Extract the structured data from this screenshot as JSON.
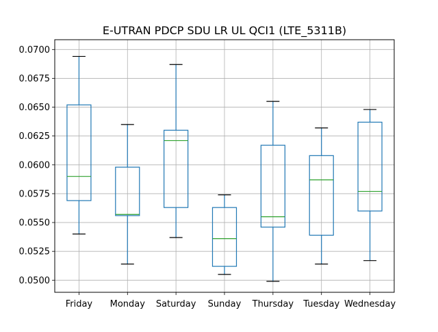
{
  "chart_data": {
    "type": "boxplot",
    "title": "E-UTRAN PDCP SDU LR UL QCI1 (LTE_5311B)",
    "xlabel": "",
    "ylabel": "",
    "ylim": [
      0.04895,
      0.07085
    ],
    "yticks": [
      "0.0500",
      "0.0525",
      "0.0550",
      "0.0575",
      "0.0600",
      "0.0625",
      "0.0650",
      "0.0675",
      "0.0700"
    ],
    "grid": true,
    "legend": "none",
    "categories": [
      "Friday",
      "Monday",
      "Saturday",
      "Sunday",
      "Thursday",
      "Tuesday",
      "Wednesday"
    ],
    "boxes": [
      {
        "label": "Friday",
        "whisker_low": 0.054,
        "q1": 0.0569,
        "median": 0.059,
        "q3": 0.0652,
        "whisker_high": 0.0694
      },
      {
        "label": "Monday",
        "whisker_low": 0.0514,
        "q1": 0.0556,
        "median": 0.0557,
        "q3": 0.0598,
        "whisker_high": 0.0635
      },
      {
        "label": "Saturday",
        "whisker_low": 0.0537,
        "q1": 0.0563,
        "median": 0.0621,
        "q3": 0.063,
        "whisker_high": 0.0687
      },
      {
        "label": "Sunday",
        "whisker_low": 0.0505,
        "q1": 0.0512,
        "median": 0.0536,
        "q3": 0.0563,
        "whisker_high": 0.0574
      },
      {
        "label": "Thursday",
        "whisker_low": 0.0499,
        "q1": 0.0546,
        "median": 0.0555,
        "q3": 0.0617,
        "whisker_high": 0.0655
      },
      {
        "label": "Tuesday",
        "whisker_low": 0.0514,
        "q1": 0.0539,
        "median": 0.0587,
        "q3": 0.0608,
        "whisker_high": 0.0632
      },
      {
        "label": "Wednesday",
        "whisker_low": 0.0517,
        "q1": 0.056,
        "median": 0.0577,
        "q3": 0.0637,
        "whisker_high": 0.0648
      }
    ],
    "colors": {
      "box": "#1f77b4",
      "median": "#2ca02c",
      "whisker_cap": "#000000",
      "grid": "#b0b0b0",
      "axes": "#000000"
    }
  }
}
